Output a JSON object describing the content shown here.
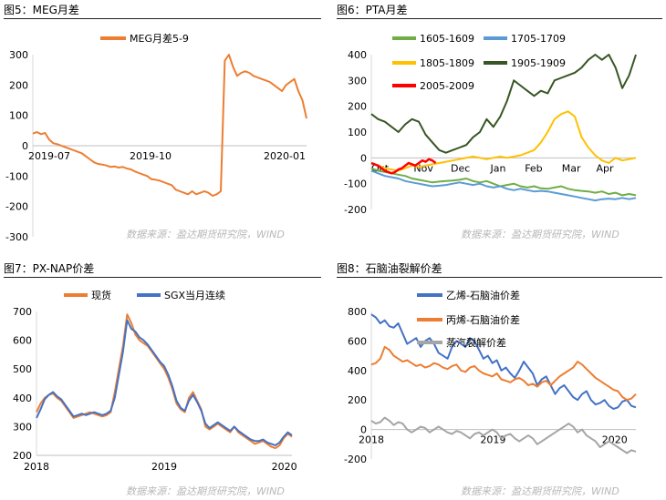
{
  "figures": {
    "f5": {
      "title": "图5：MEG月差",
      "source": "数据来源：盈达期货研究院，WIND"
    },
    "f6": {
      "title": "图6：PTA月差",
      "source": "数据来源：盈达期货研究院，WIND"
    },
    "f7": {
      "title": "图7：PX-NAP价差",
      "source": "数据来源：盈达期货研究院，WIND"
    },
    "f8": {
      "title": "图8：石脑油裂解价差",
      "source": "数据来源：盈达期货研究院，WIND"
    }
  },
  "chart_data": [
    {
      "id": "f5",
      "type": "line",
      "x_tick_labels": [
        "2019-07",
        "2019-10",
        "2020-01"
      ],
      "y_ticks": [
        300,
        200,
        100,
        0,
        -100,
        -200,
        -300
      ],
      "ylim": [
        -300,
        300
      ],
      "legend_position": "top-center",
      "series": [
        {
          "name": "MEG月差5-9",
          "color": "#ed7d31",
          "values": [
            40,
            45,
            38,
            42,
            20,
            8,
            5,
            0,
            -5,
            -10,
            -15,
            -20,
            -25,
            -35,
            -45,
            -55,
            -60,
            -62,
            -65,
            -70,
            -68,
            -72,
            -70,
            -75,
            -78,
            -85,
            -90,
            -95,
            -100,
            -110,
            -112,
            -115,
            -120,
            -125,
            -130,
            -145,
            -150,
            -155,
            -160,
            -150,
            -160,
            -155,
            -150,
            -155,
            -165,
            -160,
            -150,
            280,
            300,
            260,
            230,
            240,
            245,
            240,
            230,
            225,
            220,
            215,
            210,
            200,
            190,
            180,
            200,
            210,
            220,
            180,
            150,
            90
          ]
        }
      ]
    },
    {
      "id": "f6",
      "type": "line",
      "x_tick_labels": [
        "Oct",
        "Nov",
        "Dec",
        "Jan",
        "Feb",
        "Mar",
        "Apr"
      ],
      "y_ticks": [
        400,
        300,
        200,
        100,
        0,
        -100,
        -200
      ],
      "ylim": [
        -200,
        400
      ],
      "legend_position": "top",
      "series": [
        {
          "name": "1605-1609",
          "color": "#70ad47",
          "values": [
            -40,
            -50,
            -55,
            -60,
            -65,
            -70,
            -80,
            -85,
            -90,
            -95,
            -92,
            -90,
            -88,
            -85,
            -80,
            -90,
            -95,
            -90,
            -100,
            -110,
            -105,
            -100,
            -110,
            -115,
            -110,
            -118,
            -120,
            -115,
            -110,
            -120,
            -125,
            -128,
            -130,
            -135,
            -130,
            -140,
            -135,
            -145,
            -140,
            -145
          ]
        },
        {
          "name": "1705-1709",
          "color": "#5b9bd5",
          "values": [
            -50,
            -60,
            -70,
            -75,
            -80,
            -90,
            -95,
            -100,
            -105,
            -110,
            -108,
            -105,
            -100,
            -95,
            -100,
            -105,
            -100,
            -110,
            -115,
            -110,
            -120,
            -125,
            -120,
            -125,
            -130,
            -128,
            -130,
            -135,
            -140,
            -145,
            -150,
            -155,
            -160,
            -165,
            -160,
            -158,
            -160,
            -155,
            -160,
            -155
          ]
        },
        {
          "name": "1805-1809",
          "color": "#ffc000",
          "values": [
            -20,
            -30,
            -40,
            -45,
            -50,
            -40,
            -30,
            -35,
            -30,
            -25,
            -20,
            -15,
            -10,
            -5,
            0,
            5,
            0,
            -5,
            0,
            5,
            0,
            5,
            10,
            20,
            30,
            60,
            100,
            150,
            170,
            180,
            160,
            80,
            40,
            10,
            -10,
            -20,
            0,
            -10,
            -5,
            0
          ]
        },
        {
          "name": "1905-1909",
          "color": "#375623",
          "values": [
            170,
            150,
            140,
            120,
            100,
            130,
            150,
            140,
            90,
            60,
            30,
            20,
            30,
            40,
            50,
            80,
            100,
            150,
            120,
            160,
            220,
            300,
            280,
            260,
            240,
            260,
            250,
            300,
            310,
            320,
            330,
            350,
            380,
            400,
            380,
            400,
            350,
            270,
            320,
            400
          ]
        },
        {
          "name": "2005-2009",
          "color": "#ff0000",
          "values": [
            -20,
            -25,
            -30,
            -40,
            -50,
            -55,
            -60,
            -55,
            -45,
            -40,
            -30,
            -20,
            -25,
            -30,
            -20,
            -10,
            -15,
            -5,
            -10,
            -20
          ]
        }
      ]
    },
    {
      "id": "f7",
      "type": "line",
      "x_tick_labels": [
        "2018",
        "2019",
        "2020"
      ],
      "y_ticks": [
        700,
        600,
        500,
        400,
        300,
        200
      ],
      "ylim": [
        200,
        700
      ],
      "legend_position": "top",
      "series": [
        {
          "name": "现货",
          "color": "#ed7d31",
          "values": [
            350,
            380,
            400,
            410,
            415,
            400,
            390,
            370,
            350,
            330,
            335,
            340,
            345,
            350,
            345,
            340,
            335,
            340,
            350,
            420,
            500,
            580,
            690,
            660,
            620,
            600,
            590,
            580,
            560,
            540,
            520,
            500,
            470,
            430,
            380,
            360,
            350,
            400,
            420,
            390,
            360,
            300,
            290,
            300,
            310,
            300,
            290,
            280,
            300,
            280,
            270,
            260,
            250,
            240,
            245,
            250,
            240,
            230,
            225,
            235,
            260,
            275,
            265
          ]
        },
        {
          "name": "SGX当月连续",
          "color": "#4472c4",
          "values": [
            330,
            360,
            395,
            410,
            420,
            405,
            395,
            375,
            355,
            335,
            340,
            345,
            340,
            345,
            350,
            345,
            340,
            345,
            355,
            400,
            480,
            560,
            670,
            640,
            630,
            610,
            600,
            585,
            565,
            545,
            525,
            510,
            480,
            440,
            390,
            365,
            355,
            390,
            410,
            385,
            355,
            310,
            295,
            305,
            315,
            305,
            295,
            285,
            300,
            285,
            275,
            265,
            255,
            250,
            250,
            255,
            245,
            240,
            235,
            245,
            265,
            280,
            270
          ]
        }
      ]
    },
    {
      "id": "f8",
      "type": "line",
      "x_tick_labels": [
        "2018",
        "2019",
        "2020"
      ],
      "y_ticks": [
        800,
        600,
        400,
        200,
        0,
        -200
      ],
      "ylim": [
        -200,
        800
      ],
      "legend_position": "top",
      "series": [
        {
          "name": "乙烯-石脑油价差",
          "color": "#4472c4",
          "values": [
            780,
            760,
            720,
            740,
            700,
            690,
            720,
            650,
            580,
            600,
            620,
            560,
            600,
            620,
            580,
            520,
            500,
            480,
            560,
            600,
            580,
            560,
            620,
            600,
            540,
            480,
            500,
            450,
            470,
            400,
            420,
            380,
            350,
            400,
            460,
            420,
            380,
            300,
            340,
            360,
            300,
            240,
            280,
            300,
            260,
            220,
            200,
            240,
            260,
            200,
            170,
            180,
            200,
            160,
            140,
            150,
            190,
            200,
            160,
            150
          ]
        },
        {
          "name": "丙烯-石脑油价差",
          "color": "#ed7d31",
          "values": [
            440,
            450,
            480,
            560,
            540,
            500,
            480,
            460,
            470,
            450,
            430,
            440,
            420,
            430,
            450,
            440,
            420,
            410,
            430,
            440,
            400,
            390,
            420,
            430,
            400,
            380,
            370,
            360,
            380,
            340,
            330,
            320,
            340,
            350,
            330,
            300,
            310,
            290,
            320,
            330,
            300,
            330,
            360,
            380,
            400,
            420,
            460,
            440,
            410,
            380,
            350,
            330,
            310,
            290,
            270,
            260,
            220,
            200,
            210,
            240
          ]
        },
        {
          "name": "蒸汽裂解价差",
          "color": "#a5a5a5",
          "values": [
            60,
            40,
            50,
            80,
            60,
            30,
            50,
            40,
            0,
            -20,
            0,
            20,
            10,
            -20,
            0,
            20,
            0,
            -20,
            -30,
            -10,
            -20,
            -40,
            -60,
            -30,
            -20,
            -40,
            -20,
            0,
            -20,
            -60,
            -40,
            -30,
            -60,
            -80,
            -60,
            -40,
            -60,
            -100,
            -80,
            -60,
            -40,
            -20,
            0,
            20,
            40,
            20,
            -20,
            0,
            -40,
            -60,
            -80,
            -120,
            -100,
            -80,
            -100,
            -120,
            -140,
            -160,
            -140,
            -150
          ]
        }
      ]
    }
  ]
}
